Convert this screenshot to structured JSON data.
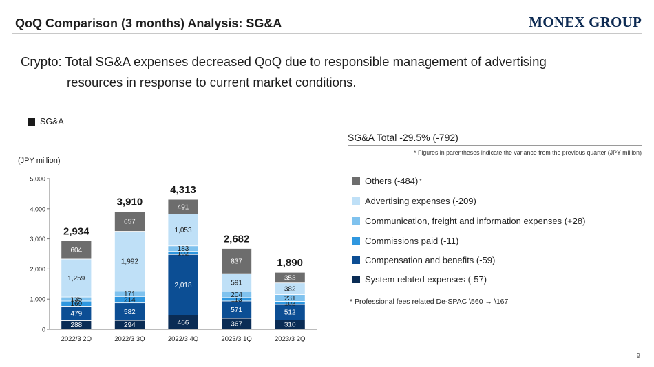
{
  "header": {
    "title": "QoQ Comparison (3 months) Analysis: SG&A",
    "logo_text": "MONEX GROUP"
  },
  "description": {
    "line1": "Crypto: Total SG&A expenses decreased QoQ due to responsible management of advertising",
    "line2": "resources in response to current market conditions."
  },
  "chart_legend_label": "SG&A",
  "unit_label": "(JPY million)",
  "summary": {
    "total_header": "SG&A Total -29.5% (-792)",
    "note": "* Figures in parentheses indicate the variance from the previous quarter (JPY million)",
    "footnote": "* Professional fees related De-SPAC \\560 → \\167"
  },
  "legend_items": [
    {
      "label": "Others (-484)",
      "sup": "*",
      "color": "#6d6d6d"
    },
    {
      "label": "Advertising expenses (-209)",
      "sup": "",
      "color": "#bfe0f7"
    },
    {
      "label": "Communication, freight and information expenses (+28)",
      "sup": "",
      "color": "#7fc2ee"
    },
    {
      "label": "Commissions paid (-11)",
      "sup": "",
      "color": "#2f97df"
    },
    {
      "label": "Compensation and benefits (-59)",
      "sup": "",
      "color": "#0c4e94"
    },
    {
      "label": "System related expenses (-57)",
      "sup": "",
      "color": "#0a2c55"
    }
  ],
  "page_number": "9",
  "chart_data": {
    "type": "bar",
    "stacked": true,
    "categories": [
      "2022/3 2Q",
      "2022/3 3Q",
      "2022/3 4Q",
      "2023/3 1Q",
      "2023/3 2Q"
    ],
    "series": [
      {
        "name": "System related expenses",
        "color": "#0a2c55",
        "values": [
          288,
          294,
          466,
          367,
          310
        ]
      },
      {
        "name": "Compensation and benefits",
        "color": "#0c4e94",
        "values": [
          479,
          582,
          2018,
          571,
          512
        ]
      },
      {
        "name": "Commissions paid",
        "color": "#2f97df",
        "values": [
          169,
          214,
          102,
          113,
          102
        ]
      },
      {
        "name": "Communication, freight and information expenses",
        "color": "#7fc2ee",
        "values": [
          135,
          171,
          183,
          204,
          231
        ]
      },
      {
        "name": "Advertising expenses",
        "color": "#bfe0f7",
        "values": [
          1259,
          1992,
          1053,
          591,
          382
        ]
      },
      {
        "name": "Others",
        "color": "#6d6d6d",
        "values": [
          604,
          657,
          491,
          837,
          353
        ]
      }
    ],
    "totals": [
      2934,
      3910,
      4313,
      2682,
      1890
    ],
    "ylim": [
      0,
      5000
    ],
    "yticks": [
      "0",
      "1,000",
      "2,000",
      "3,000",
      "4,000",
      "5,000"
    ],
    "ytick_values": [
      0,
      1000,
      2000,
      3000,
      4000,
      5000
    ],
    "grid": false,
    "legend": "right"
  }
}
